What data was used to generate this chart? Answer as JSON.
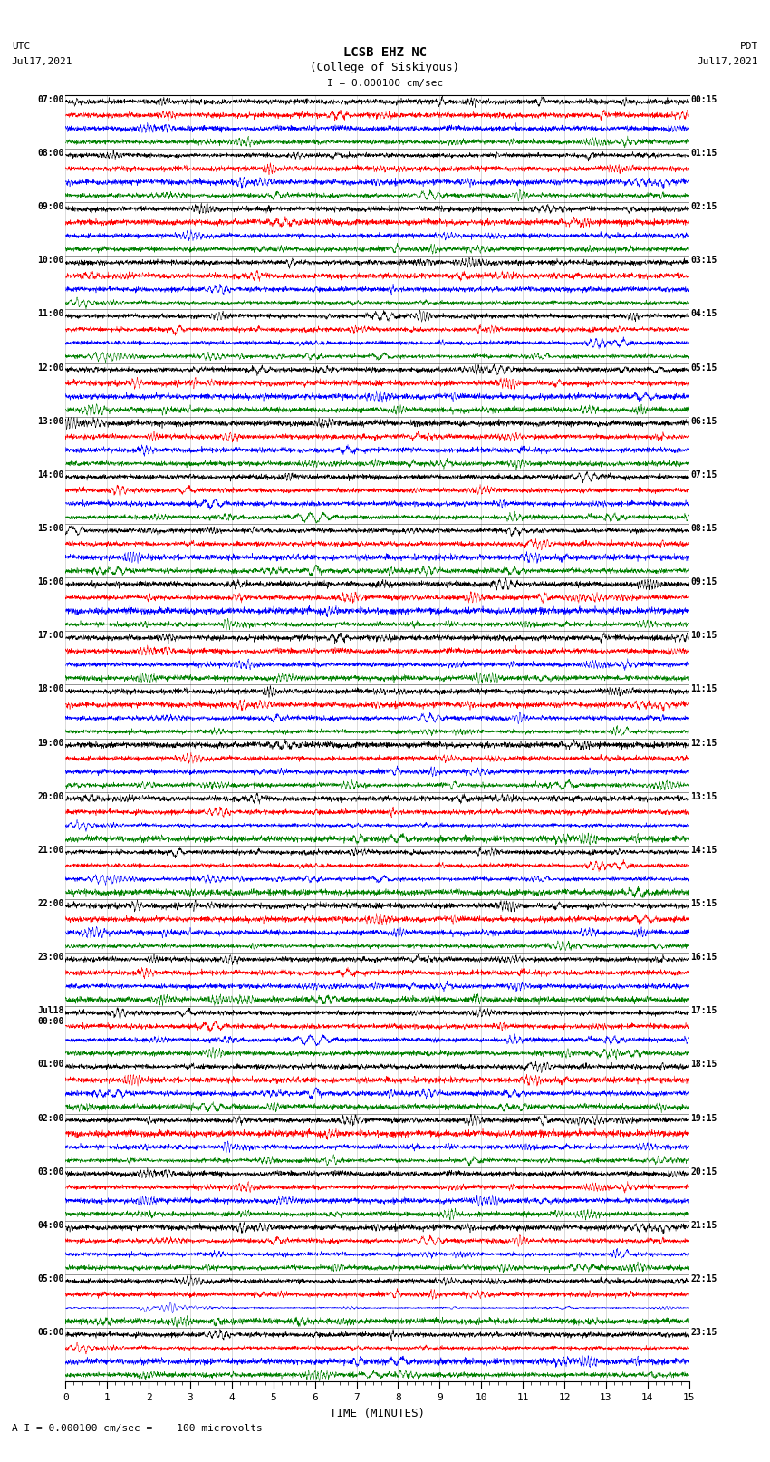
{
  "title_line1": "LCSB EHZ NC",
  "title_line2": "(College of Siskiyous)",
  "scale_label": "I = 0.000100 cm/sec",
  "footer_label": "A I = 0.000100 cm/sec =    100 microvolts",
  "xlabel": "TIME (MINUTES)",
  "left_header1": "UTC",
  "left_header2": "Jul17,2021",
  "right_header1": "PDT",
  "right_header2": "Jul17,2021",
  "left_times": [
    "07:00",
    "08:00",
    "09:00",
    "10:00",
    "11:00",
    "12:00",
    "13:00",
    "14:00",
    "15:00",
    "16:00",
    "17:00",
    "18:00",
    "19:00",
    "20:00",
    "21:00",
    "22:00",
    "23:00",
    "Jul18\n00:00",
    "01:00",
    "02:00",
    "03:00",
    "04:00",
    "05:00",
    "06:00"
  ],
  "right_times": [
    "00:15",
    "01:15",
    "02:15",
    "03:15",
    "04:15",
    "05:15",
    "06:15",
    "07:15",
    "08:15",
    "09:15",
    "10:15",
    "11:15",
    "12:15",
    "13:15",
    "14:15",
    "15:15",
    "16:15",
    "17:15",
    "18:15",
    "19:15",
    "20:15",
    "21:15",
    "22:15",
    "23:15"
  ],
  "n_rows": 24,
  "traces_per_row": 4,
  "trace_colors": [
    "black",
    "red",
    "blue",
    "green"
  ],
  "xlim": [
    0,
    15
  ],
  "xticks": [
    0,
    1,
    2,
    3,
    4,
    5,
    6,
    7,
    8,
    9,
    10,
    11,
    12,
    13,
    14,
    15
  ],
  "background_color": "white",
  "fig_width": 8.5,
  "fig_height": 16.13,
  "dpi": 100,
  "noise_amplitude": [
    0.3,
    0.4,
    0.28,
    0.22
  ],
  "big_event_row": 22,
  "big_event_trace": 2,
  "big_event2_row": 22,
  "big_event2_trace": 3,
  "n_samples": 3000,
  "lw": 0.35
}
